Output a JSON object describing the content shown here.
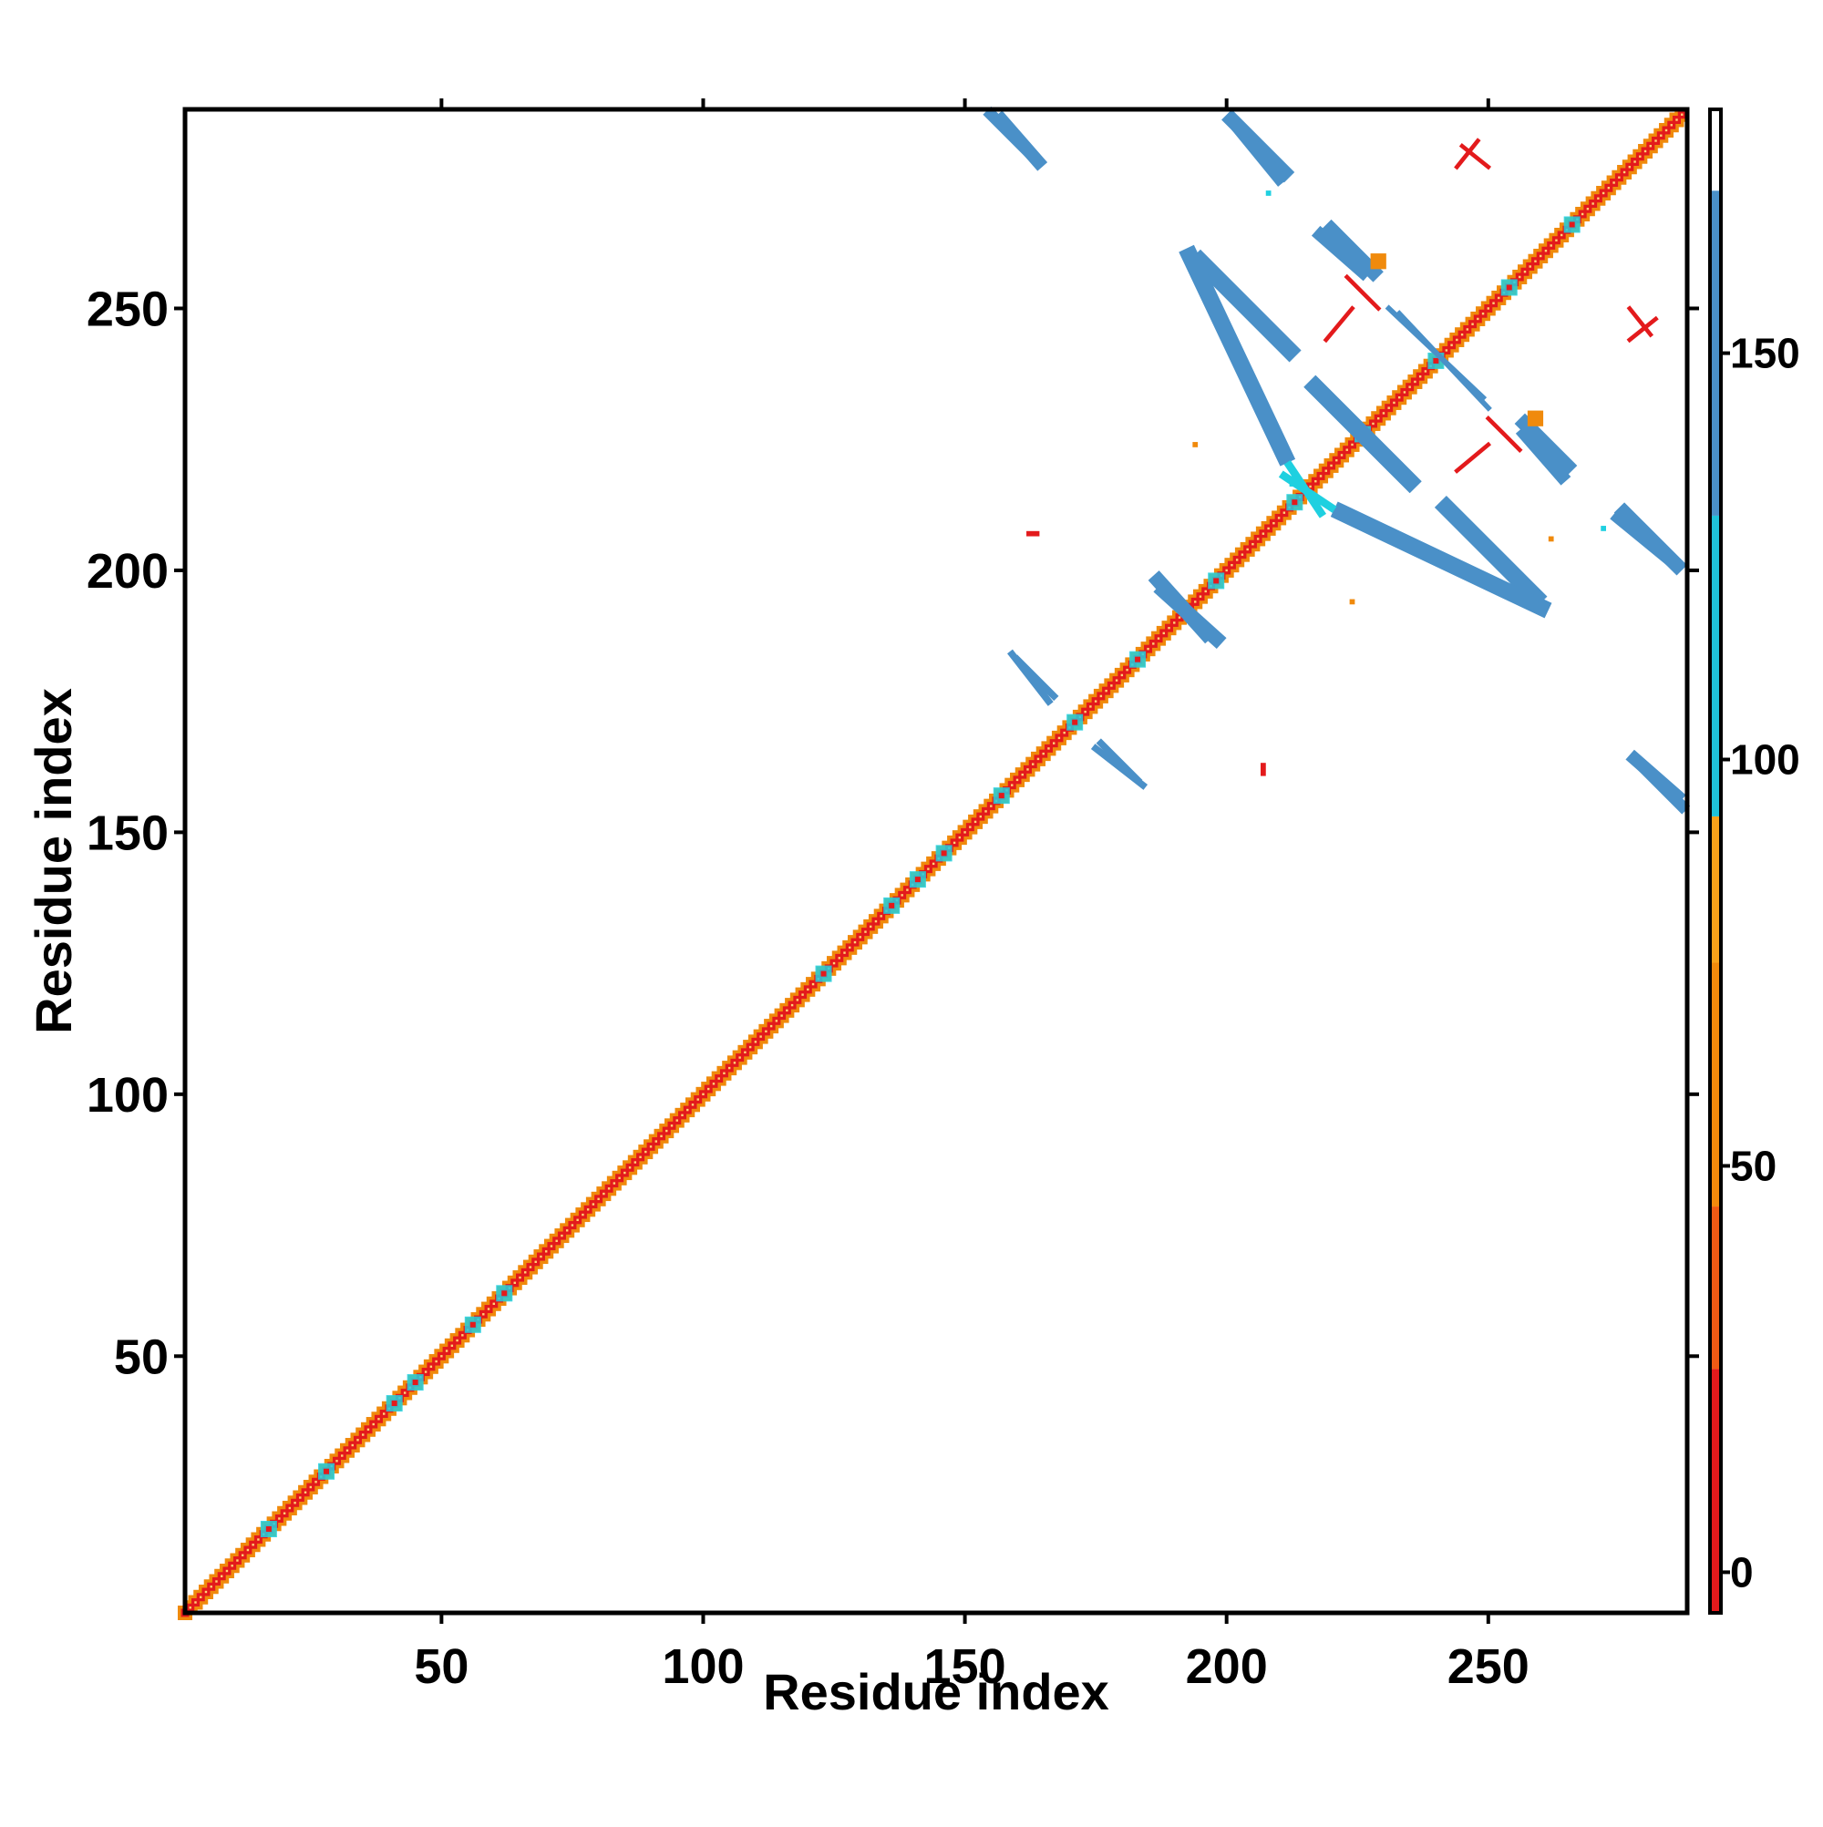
{
  "chart_data": {
    "type": "heatmap",
    "title": "",
    "xlabel": "Residue index",
    "ylabel": "Residue index",
    "xlim": [
      1,
      288
    ],
    "ylim": [
      1,
      288
    ],
    "xticks": [
      50,
      100,
      150,
      200,
      250
    ],
    "yticks": [
      50,
      100,
      150,
      200,
      250
    ],
    "colorbar": {
      "ticks": [
        0,
        50,
        100,
        150
      ],
      "range": [
        -5,
        180
      ],
      "bands": [
        {
          "from": -5,
          "to": 25,
          "color": "#e31a1c"
        },
        {
          "from": 25,
          "to": 45,
          "color": "#ef5a14"
        },
        {
          "from": 45,
          "to": 75,
          "color": "#f28a0c"
        },
        {
          "from": 75,
          "to": 93,
          "color": "#f9a21a"
        },
        {
          "from": 93,
          "to": 130,
          "color": "#1fc2d8"
        },
        {
          "from": 130,
          "to": 170,
          "color": "#4a90c8"
        },
        {
          "from": 170,
          "to": 180,
          "color": "#ffffff"
        }
      ]
    },
    "colors": {
      "red": "#e31a1c",
      "orange": "#f08a0c",
      "cyan": "#1fd0e0",
      "blue": "#4a90c8"
    },
    "diagonal": {
      "from": 1,
      "to": 287
    },
    "segments": [
      {
        "x1": 155,
        "y1": 287,
        "x2": 164,
        "y2": 278,
        "color": "blue",
        "width": 2.2
      },
      {
        "x1": 201,
        "y1": 286,
        "x2": 211,
        "y2": 276,
        "color": "blue",
        "width": 2.8
      },
      {
        "x1": 220,
        "y1": 265,
        "x2": 228,
        "y2": 257,
        "color": "blue",
        "width": 2.8
      },
      {
        "x1": 195,
        "y1": 259,
        "x2": 212,
        "y2": 242,
        "color": "blue",
        "width": 3.2
      },
      {
        "x1": 217,
        "y1": 235,
        "x2": 235,
        "y2": 217,
        "color": "blue",
        "width": 3.2
      },
      {
        "x1": 222,
        "y1": 211,
        "x2": 260,
        "y2": 193,
        "color": "blue",
        "width": 3.2
      },
      {
        "x1": 257,
        "y1": 226,
        "x2": 264,
        "y2": 218,
        "color": "blue",
        "width": 2.5
      },
      {
        "x1": 275,
        "y1": 210,
        "x2": 286,
        "y2": 201,
        "color": "blue",
        "width": 2.5
      },
      {
        "x1": 278,
        "y1": 164,
        "x2": 286,
        "y2": 157,
        "color": "blue",
        "width": 2.5
      },
      {
        "x1": 231,
        "y1": 250,
        "x2": 249,
        "y2": 233,
        "color": "blue",
        "width": 1.0
      },
      {
        "x1": 160,
        "y1": 183,
        "x2": 167,
        "y2": 176,
        "color": "blue",
        "width": 1.3
      },
      {
        "x1": 175,
        "y1": 166,
        "x2": 184,
        "y2": 159,
        "color": "blue",
        "width": 1.3
      },
      {
        "x1": 188,
        "y1": 196,
        "x2": 198,
        "y2": 187,
        "color": "blue",
        "width": 2.8
      },
      {
        "x1": 211,
        "y1": 218,
        "x2": 220,
        "y2": 212,
        "color": "cyan",
        "width": 1.5
      },
      {
        "x1": 245,
        "y1": 281,
        "x2": 250,
        "y2": 277,
        "color": "red",
        "width": 0.8
      },
      {
        "x1": 223,
        "y1": 256,
        "x2": 229,
        "y2": 250,
        "color": "red",
        "width": 0.8
      },
      {
        "x1": 277,
        "y1": 244,
        "x2": 282,
        "y2": 248,
        "color": "red",
        "width": 0.8
      },
      {
        "x1": 244,
        "y1": 219,
        "x2": 250,
        "y2": 224,
        "color": "red",
        "width": 0.8
      }
    ],
    "spots": [
      {
        "x": 163,
        "y": 207,
        "w": 2.5,
        "h": 1,
        "color": "red"
      },
      {
        "x": 207,
        "y": 162,
        "w": 1,
        "h": 2.5,
        "color": "red"
      },
      {
        "x": 224,
        "y": 194,
        "w": 1,
        "h": 1,
        "color": "orange"
      },
      {
        "x": 194,
        "y": 224,
        "w": 1,
        "h": 1,
        "color": "orange"
      },
      {
        "x": 229,
        "y": 259,
        "w": 3,
        "h": 3,
        "color": "orange"
      },
      {
        "x": 259,
        "y": 229,
        "w": 3,
        "h": 3,
        "color": "orange"
      },
      {
        "x": 208,
        "y": 272,
        "w": 1,
        "h": 1,
        "color": "cyan"
      },
      {
        "x": 213,
        "y": 217,
        "w": 2,
        "h": 2,
        "color": "cyan"
      },
      {
        "x": 272,
        "y": 208,
        "w": 1,
        "h": 1,
        "color": "cyan"
      },
      {
        "x": 262,
        "y": 206,
        "w": 1,
        "h": 1,
        "color": "orange"
      }
    ]
  }
}
